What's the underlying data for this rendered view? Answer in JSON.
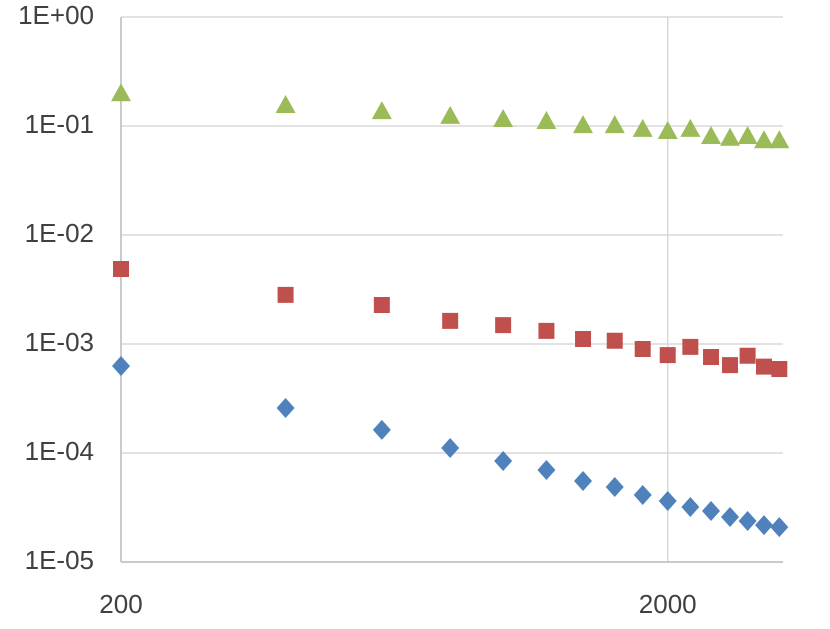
{
  "chart_data": {
    "type": "scatter",
    "x": [
      200,
      400,
      600,
      800,
      1000,
      1200,
      1400,
      1600,
      1800,
      2000,
      2200,
      2400,
      2600,
      2800,
      3000,
      3200
    ],
    "series": [
      {
        "color": "#9bbb59",
        "marker": "triangle",
        "values": [
          0.2,
          0.156,
          0.137,
          0.124,
          0.116,
          0.111,
          0.102,
          0.102,
          0.094,
          0.09,
          0.094,
          0.081,
          0.078,
          0.081,
          0.074,
          0.074
        ]
      },
      {
        "color": "#c0504d",
        "marker": "square",
        "values": [
          0.00488,
          0.00282,
          0.00228,
          0.00163,
          0.00149,
          0.00132,
          0.00111,
          0.00107,
          0.0009,
          0.00079,
          0.00094,
          0.00076,
          0.00064,
          0.00078,
          0.00062,
          0.00059
        ]
      },
      {
        "color": "#4f81bd",
        "marker": "diamond",
        "values": [
          0.000628,
          0.000259,
          0.000163,
          0.000111,
          8.45e-05,
          6.99e-05,
          5.54e-05,
          4.88e-05,
          4.12e-05,
          3.63e-05,
          3.2e-05,
          2.94e-05,
          2.59e-05,
          2.38e-05,
          2.18e-05,
          2.09e-05
        ]
      }
    ],
    "xlim": [
      200,
      3250
    ],
    "xticks": [
      200,
      2000
    ],
    "xscale": "log",
    "ylim": [
      1e-05,
      1
    ],
    "yscale": "log",
    "yticks": [
      {
        "value": 1e-05,
        "label": "1E-05"
      },
      {
        "value": 0.0001,
        "label": "1E-04"
      },
      {
        "value": 0.001,
        "label": "1E-03"
      },
      {
        "value": 0.01,
        "label": "1E-02"
      },
      {
        "value": 0.1,
        "label": "1E-01"
      },
      {
        "value": 1,
        "label": "1E+00"
      }
    ],
    "grid": true
  }
}
